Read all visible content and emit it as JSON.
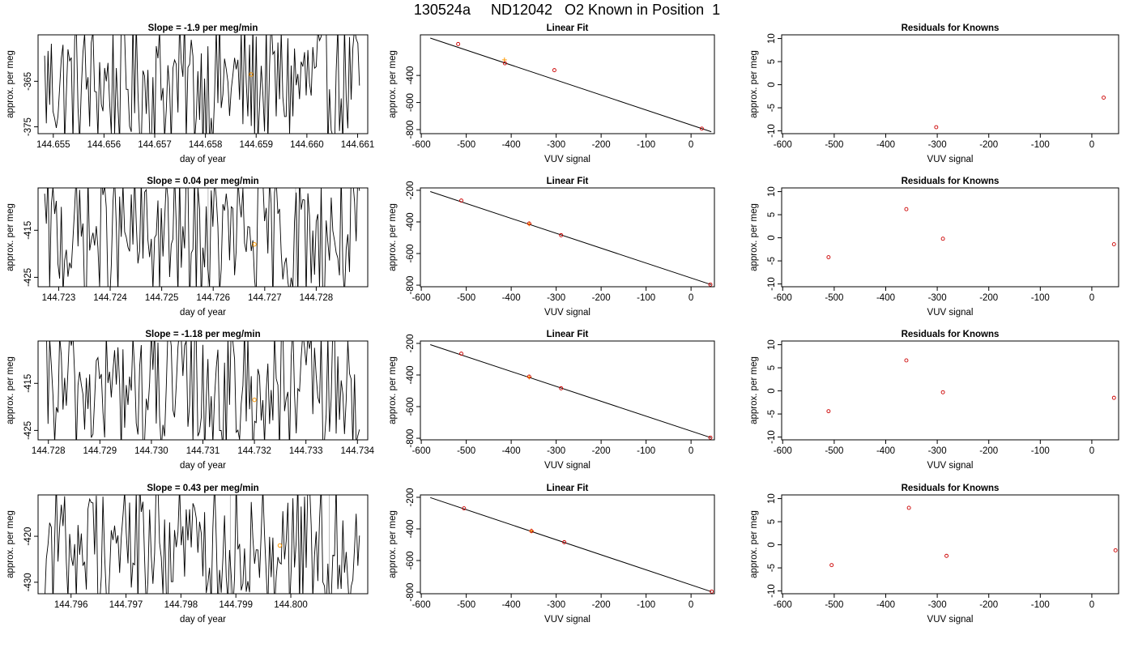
{
  "figure": {
    "title": "130524a     ND12042   O2 Known in Position  1"
  },
  "chart_data": [
    {
      "type": "line",
      "panel": "time-series",
      "row": 0,
      "title": "Slope =  -1.9  per meg/min",
      "xlabel": "day of year",
      "ylabel": "approx. per meg",
      "xlim": [
        144.6547,
        144.6612
      ],
      "ylim": [
        -376.5,
        -354.8
      ],
      "xticks": [
        144.655,
        144.656,
        144.657,
        144.658,
        144.659,
        144.66,
        144.661
      ],
      "xtick_labels": [
        "144.655",
        "144.656",
        "144.657",
        "144.658",
        "144.659",
        "144.660",
        "144.661"
      ],
      "yticks": [
        -365,
        -375
      ],
      "ytick_labels": [
        "-365",
        "-375"
      ],
      "marker": {
        "x": 144.6589,
        "y": -363.5
      },
      "gray_vlines": []
    },
    {
      "type": "scatter",
      "panel": "linear-fit",
      "row": 0,
      "title": "Linear Fit",
      "xlabel": "VUV signal",
      "ylabel": "approx. per meg",
      "xlim": [
        -602,
        52
      ],
      "ylim": [
        -830,
        -100
      ],
      "xticks": [
        -600,
        -500,
        -400,
        -300,
        -200,
        -100,
        0
      ],
      "xtick_labels": [
        "-600",
        "-500",
        "-400",
        "-300",
        "-200",
        "-100",
        "0"
      ],
      "yticks": [
        -400,
        -600,
        -800
      ],
      "ytick_labels": [
        "-400",
        "-600",
        "-800"
      ],
      "fit_line": {
        "x": [
          -580,
          45
        ],
        "y": [
          -124,
          -816
        ]
      },
      "points": [
        {
          "x": -518,
          "y": -168
        },
        {
          "x": -414,
          "y": -310
        },
        {
          "x": -304,
          "y": -361
        },
        {
          "x": 24,
          "y": -793
        }
      ],
      "known": {
        "x": -415,
        "y": -285
      }
    },
    {
      "type": "scatter",
      "panel": "residuals",
      "row": 0,
      "title": "Residuals for Knowns",
      "xlabel": "VUV signal",
      "ylabel": "approx. per meg",
      "xlim": [
        -602,
        52
      ],
      "ylim": [
        -10.6,
        10.8
      ],
      "xticks": [
        -600,
        -500,
        -400,
        -300,
        -200,
        -100,
        0
      ],
      "xtick_labels": [
        "-600",
        "-500",
        "-400",
        "-300",
        "-200",
        "-100",
        "0"
      ],
      "yticks": [
        10,
        5,
        0,
        -5,
        -10
      ],
      "ytick_labels": [
        "10",
        "5",
        "0",
        "-5",
        "-10"
      ],
      "points": [
        {
          "x": -302,
          "y": -9.2
        },
        {
          "x": 23,
          "y": -2.8
        }
      ]
    },
    {
      "type": "line",
      "panel": "time-series",
      "row": 1,
      "title": "Slope =  0.04  per meg/min",
      "xlabel": "day of year",
      "ylabel": "approx. per meg",
      "xlim": [
        144.7226,
        144.729
      ],
      "ylim": [
        -427,
        -406
      ],
      "xticks": [
        144.723,
        144.724,
        144.725,
        144.726,
        144.727,
        144.728
      ],
      "xtick_labels": [
        "144.723",
        "144.724",
        "144.725",
        "144.726",
        "144.727",
        "144.728"
      ],
      "yticks": [
        -415,
        -425
      ],
      "ytick_labels": [
        "-415",
        "-425"
      ],
      "marker": {
        "x": 144.7268,
        "y": -418
      },
      "gray_vlines": [
        144.7259,
        144.7276
      ]
    },
    {
      "type": "scatter",
      "panel": "linear-fit",
      "row": 1,
      "title": "Linear Fit",
      "xlabel": "VUV signal",
      "ylabel": "approx. per meg",
      "xlim": [
        -602,
        52
      ],
      "ylim": [
        -810,
        -185
      ],
      "xticks": [
        -600,
        -500,
        -400,
        -300,
        -200,
        -100,
        0
      ],
      "xtick_labels": [
        "-600",
        "-500",
        "-400",
        "-300",
        "-200",
        "-100",
        "0"
      ],
      "yticks": [
        -200,
        -400,
        -600,
        -800
      ],
      "ytick_labels": [
        "-200",
        "-400",
        "-600",
        "-800"
      ],
      "fit_line": {
        "x": [
          -580,
          45
        ],
        "y": [
          -208,
          -797
        ]
      },
      "points": [
        {
          "x": -511,
          "y": -265
        },
        {
          "x": -360,
          "y": -410
        },
        {
          "x": -289,
          "y": -484
        },
        {
          "x": 43,
          "y": -796
        }
      ],
      "known": {
        "x": -360,
        "y": -412
      }
    },
    {
      "type": "scatter",
      "panel": "residuals",
      "row": 1,
      "title": "Residuals for Knowns",
      "xlabel": "VUV signal",
      "ylabel": "approx. per meg",
      "xlim": [
        -602,
        52
      ],
      "ylim": [
        -10.6,
        10.8
      ],
      "xticks": [
        -600,
        -500,
        -400,
        -300,
        -200,
        -100,
        0
      ],
      "xtick_labels": [
        "-600",
        "-500",
        "-400",
        "-300",
        "-200",
        "-100",
        "0"
      ],
      "yticks": [
        10,
        5,
        0,
        -5,
        -10
      ],
      "ytick_labels": [
        "10",
        "5",
        "0",
        "-5",
        "-10"
      ],
      "points": [
        {
          "x": -511,
          "y": -4.2
        },
        {
          "x": -360,
          "y": 6.2
        },
        {
          "x": -289,
          "y": -0.2
        },
        {
          "x": 43,
          "y": -1.4
        }
      ]
    },
    {
      "type": "line",
      "panel": "time-series",
      "row": 2,
      "title": "Slope =  -1.18  per meg/min",
      "xlabel": "day of year",
      "ylabel": "approx. per meg",
      "xlim": [
        144.7278,
        144.7342
      ],
      "ylim": [
        -427,
        -406
      ],
      "xticks": [
        144.728,
        144.729,
        144.73,
        144.731,
        144.732,
        144.733,
        144.734
      ],
      "xtick_labels": [
        "144.728",
        "144.729",
        "144.730",
        "144.731",
        "144.732",
        "144.733",
        "144.734"
      ],
      "yticks": [
        -415,
        -425
      ],
      "ytick_labels": [
        "-415",
        "-425"
      ],
      "marker": {
        "x": 144.732,
        "y": -418.5
      },
      "gray_vlines": []
    },
    {
      "type": "scatter",
      "panel": "linear-fit",
      "row": 2,
      "title": "Linear Fit",
      "xlabel": "VUV signal",
      "ylabel": "approx. per meg",
      "xlim": [
        -602,
        52
      ],
      "ylim": [
        -810,
        -185
      ],
      "xticks": [
        -600,
        -500,
        -400,
        -300,
        -200,
        -100,
        0
      ],
      "xtick_labels": [
        "-600",
        "-500",
        "-400",
        "-300",
        "-200",
        "-100",
        "0"
      ],
      "yticks": [
        -200,
        -400,
        -600,
        -800
      ],
      "ytick_labels": [
        "-200",
        "-400",
        "-600",
        "-800"
      ],
      "fit_line": {
        "x": [
          -580,
          45
        ],
        "y": [
          -208,
          -797
        ]
      },
      "points": [
        {
          "x": -511,
          "y": -265
        },
        {
          "x": -360,
          "y": -410
        },
        {
          "x": -289,
          "y": -484
        },
        {
          "x": 43,
          "y": -796
        }
      ],
      "known": {
        "x": -360,
        "y": -413
      }
    },
    {
      "type": "scatter",
      "panel": "residuals",
      "row": 2,
      "title": "Residuals for Knowns",
      "xlabel": "VUV signal",
      "ylabel": "approx. per meg",
      "xlim": [
        -602,
        52
      ],
      "ylim": [
        -10.6,
        10.8
      ],
      "xticks": [
        -600,
        -500,
        -400,
        -300,
        -200,
        -100,
        0
      ],
      "xtick_labels": [
        "-600",
        "-500",
        "-400",
        "-300",
        "-200",
        "-100",
        "0"
      ],
      "yticks": [
        10,
        5,
        0,
        -5,
        -10
      ],
      "ytick_labels": [
        "10",
        "5",
        "0",
        "-5",
        "-10"
      ],
      "points": [
        {
          "x": -511,
          "y": -4.4
        },
        {
          "x": -360,
          "y": 6.6
        },
        {
          "x": -289,
          "y": -0.3
        },
        {
          "x": 43,
          "y": -1.5
        }
      ]
    },
    {
      "type": "line",
      "panel": "time-series",
      "row": 3,
      "title": "Slope =  0.43  per meg/min",
      "xlabel": "day of year",
      "ylabel": "approx. per meg",
      "xlim": [
        144.7954,
        144.8014
      ],
      "ylim": [
        -432.5,
        -411
      ],
      "xticks": [
        144.796,
        144.797,
        144.798,
        144.799,
        144.8
      ],
      "xtick_labels": [
        "144.796",
        "144.797",
        "144.798",
        "144.799",
        "144.800"
      ],
      "yticks": [
        -420,
        -430
      ],
      "ytick_labels": [
        "-420",
        "-430"
      ],
      "marker": {
        "x": 144.7998,
        "y": -422
      },
      "gray_vlines": [
        144.7989,
        144.8007
      ]
    },
    {
      "type": "scatter",
      "panel": "linear-fit",
      "row": 3,
      "title": "Linear Fit",
      "xlabel": "VUV signal",
      "ylabel": "approx. per meg",
      "xlim": [
        -602,
        52
      ],
      "ylim": [
        -810,
        -185
      ],
      "xticks": [
        -600,
        -500,
        -400,
        -300,
        -200,
        -100,
        0
      ],
      "xtick_labels": [
        "-600",
        "-500",
        "-400",
        "-300",
        "-200",
        "-100",
        "0"
      ],
      "yticks": [
        -200,
        -400,
        -600,
        -800
      ],
      "ytick_labels": [
        "-200",
        "-400",
        "-600",
        "-800"
      ],
      "fit_line": {
        "x": [
          -580,
          45
        ],
        "y": [
          -202,
          -797
        ]
      },
      "points": [
        {
          "x": -505,
          "y": -270
        },
        {
          "x": -355,
          "y": -414
        },
        {
          "x": -282,
          "y": -484
        },
        {
          "x": 46,
          "y": -796
        }
      ],
      "known": {
        "x": -355,
        "y": -413
      }
    },
    {
      "type": "scatter",
      "panel": "residuals",
      "row": 3,
      "title": "Residuals for Knowns",
      "xlabel": "VUV signal",
      "ylabel": "approx. per meg",
      "xlim": [
        -602,
        52
      ],
      "ylim": [
        -10.6,
        10.8
      ],
      "xticks": [
        -600,
        -500,
        -400,
        -300,
        -200,
        -100,
        0
      ],
      "xtick_labels": [
        "-600",
        "-500",
        "-400",
        "-300",
        "-200",
        "-100",
        "0"
      ],
      "yticks": [
        10,
        5,
        0,
        -5,
        -10
      ],
      "ytick_labels": [
        "10",
        "5",
        "0",
        "-5",
        "-10"
      ],
      "points": [
        {
          "x": -505,
          "y": -4.4
        },
        {
          "x": -355,
          "y": 8.0
        },
        {
          "x": -282,
          "y": -2.4
        },
        {
          "x": 46,
          "y": -1.2
        }
      ]
    }
  ],
  "colors": {
    "axis": "#000000",
    "series_line": "#000000",
    "point": "#cc0000",
    "known_marker": "#ff9900",
    "gray_vline": "#bbbbbb"
  }
}
